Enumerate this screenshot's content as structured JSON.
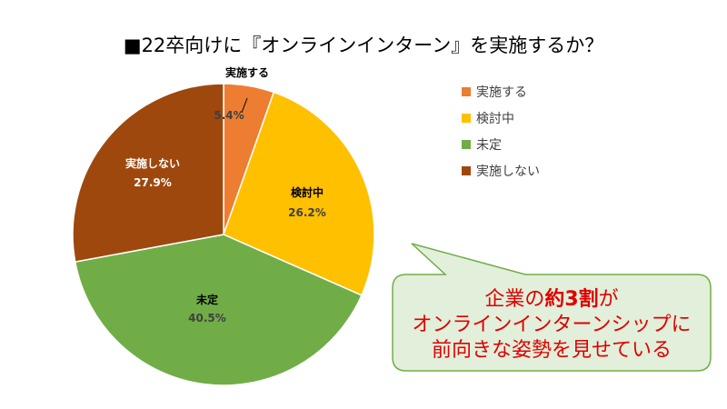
{
  "chart_data": {
    "type": "pie",
    "title": "■22卒向けに『オンラインインターン』を実施するか？",
    "start": "top",
    "direction": "clockwise",
    "legend_position": "right",
    "slices": [
      {
        "label": "実施する",
        "value": 5.4,
        "display": "5.4%",
        "color": "#ed7d31"
      },
      {
        "label": "検討中",
        "value": 26.2,
        "display": "26.2%",
        "color": "#ffc000"
      },
      {
        "label": "未定",
        "value": 40.5,
        "display": "40.5%",
        "color": "#70ad47"
      },
      {
        "label": "実施しない",
        "value": 27.9,
        "display": "27.9%",
        "color": "#9e480e"
      }
    ]
  },
  "callout": {
    "line1_prefix": "企業の",
    "line1_emphasis": "約3割",
    "line1_suffix": "が",
    "line2": "オンラインインターンシップに",
    "line3": "前向きな姿勢を見せている",
    "fill": "#e2efda",
    "border": "#70ad47",
    "text_color": "#e00000"
  }
}
